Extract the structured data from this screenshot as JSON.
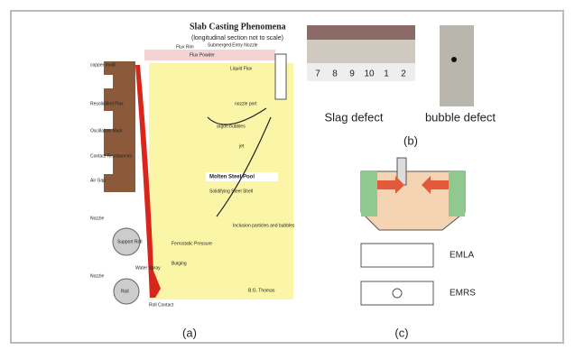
{
  "panel_a": {
    "title": "Slab Casting Phenomena",
    "subtitle": "(longitudinal section not to scale)",
    "labels": {
      "flux_rim": "Flux Rim",
      "sen": "Submerged Entry Nozzle",
      "flux_powder": "Flux Powder",
      "liquid_flux": "Liquid Flux",
      "copper_mold": "copper mold",
      "resolidified": "Resolidified Flux",
      "oscillation": "Oscillation Mark",
      "contact": "Contact Resistances",
      "air_gap": "Air Gap",
      "nozzle1": "Nozzle",
      "support_roll": "Support Roll",
      "water_spray": "Water Spray",
      "nozzle2": "Nozzle",
      "roll": "Roll",
      "roll_contact": "Roll Contact",
      "pool": "Molten Steel Pool",
      "shell": "Solidifying Steel Shell",
      "argon": "argon bubbles",
      "jet": "jet",
      "port": "nozzle port",
      "inclusions": "Inclusion particles and bubbles",
      "ferrostatic": "Ferrostatic Pressure",
      "bulging": "Bulging",
      "credit": "B.G. Thomas"
    },
    "caption": "(a)"
  },
  "panel_b": {
    "ruler": [
      "7",
      "8",
      "9",
      "10",
      "1",
      "2"
    ],
    "slag": "Slag defect",
    "bubble": "bubble defect",
    "caption": "(b)"
  },
  "panel_c": {
    "emla": "EMLA",
    "emrs": "EMRS",
    "caption": "(c)"
  }
}
